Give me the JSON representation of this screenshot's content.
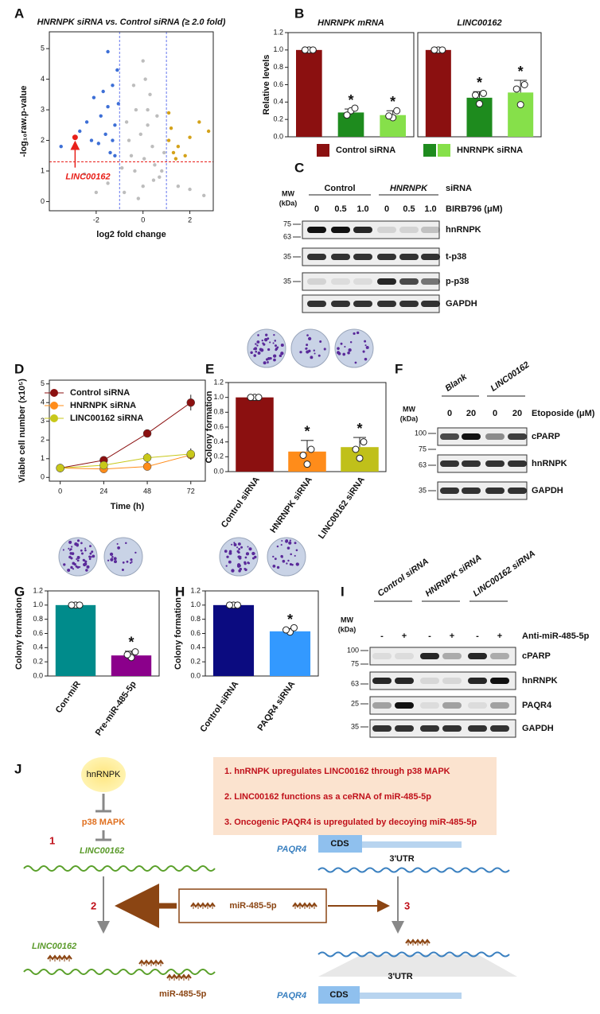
{
  "panel_labels": [
    "A",
    "B",
    "C",
    "D",
    "E",
    "F",
    "G",
    "H",
    "I",
    "J"
  ],
  "chart_data": [
    {
      "type": "scatter",
      "title": "HNRNPK siRNA vs. Control siRNA (≥ 2.0 fold)",
      "xlabel": "log2 fold change",
      "ylabel": "-log₁₀raw.p-value",
      "xlim": [
        -4,
        3
      ],
      "ylim": [
        -0.3,
        5.55
      ],
      "xticks": [
        -2,
        0,
        2
      ],
      "yticks": [
        0,
        1,
        2,
        3,
        4,
        5
      ],
      "vlines": [
        -1,
        1
      ],
      "hline": 1.3,
      "series": [
        {
          "color": "#bdbdbd",
          "x": [
            0,
            -0.5,
            0.5,
            0.2,
            -0.3,
            0.1,
            0.3,
            -0.6,
            0.7,
            -0.8,
            0.4,
            -0.2,
            0.6,
            -0.4,
            0,
            -1.5,
            1.5,
            -2,
            2,
            0.8,
            -0.9,
            -2.5,
            2.6,
            -0.1,
            0.2,
            -0.7,
            0.9,
            -0.35,
            0.45,
            0.05
          ],
          "values": [
            0.5,
            1.5,
            1.2,
            2.5,
            3.0,
            4.0,
            3.5,
            2.0,
            0.8,
            0.3,
            1.8,
            0.1,
            2.8,
            3.8,
            4.6,
            0.6,
            0.5,
            0.3,
            0.4,
            1.0,
            1.1,
            0.9,
            0.2,
            2.2,
            3.0,
            2.6,
            1.6,
            1.0,
            0.7,
            1.4
          ]
        },
        {
          "color": "#3d6fd6",
          "x": [
            -1.2,
            -1.5,
            -1.8,
            -2.1,
            -1.3,
            -1.1,
            -1.6,
            -2.4,
            -1.9,
            -1.4,
            -2.7,
            -1.2,
            -3.5,
            -1.7,
            -1.05,
            -2.2,
            -1.5,
            -1.3
          ],
          "values": [
            2.5,
            3.1,
            2.8,
            3.4,
            3.8,
            4.3,
            2.2,
            2.6,
            1.9,
            1.6,
            2.3,
            1.5,
            1.8,
            3.6,
            3.2,
            2.0,
            4.9,
            2.0
          ]
        },
        {
          "color": "#d4a21a",
          "x": [
            1.1,
            1.3,
            1.5,
            1.2,
            2.4,
            2.8,
            1.8,
            1.1,
            2.0,
            1.4
          ],
          "values": [
            2.0,
            1.6,
            1.8,
            2.4,
            2.6,
            2.3,
            1.5,
            2.9,
            2.1,
            1.4
          ]
        },
        {
          "color": "#e8201a",
          "x": [
            -2.9
          ],
          "values": [
            2.1
          ]
        }
      ],
      "annotation": "LINC00162"
    },
    {
      "type": "bar",
      "title": "HNRNPK mRNA",
      "ylabel": "Relative levels",
      "values": [
        1.0,
        0.28,
        0.25
      ],
      "errors": [
        0,
        0.04,
        0.05
      ],
      "points": [
        [
          1,
          1,
          1
        ],
        [
          0.3,
          0.25,
          0.33
        ],
        [
          0.22,
          0.24,
          0.3
        ]
      ],
      "significance": [
        null,
        "*",
        "*"
      ],
      "colors": [
        "#8b1010",
        "#1e8b1e",
        "#86e04a"
      ],
      "ylim": [
        0,
        1.2
      ],
      "yticks": [
        {
          "value": 0,
          "label": "0.0"
        },
        0.2,
        0.4,
        0.6,
        0.8,
        {
          "value": 1,
          "label": "1.0"
        },
        1.2
      ],
      "legend": [
        {
          "name": "Control siRNA",
          "colors": [
            "#8b1010"
          ]
        },
        {
          "name": "HNRNPK siRNA",
          "colors": [
            "#1e8b1e",
            "#86e04a"
          ]
        }
      ]
    },
    {
      "type": "bar",
      "title": "LINC00162",
      "values": [
        1.0,
        0.45,
        0.51
      ],
      "errors": [
        0,
        0.07,
        0.14
      ],
      "points": [
        [
          1,
          1,
          1
        ],
        [
          0.38,
          0.48,
          0.5
        ],
        [
          0.37,
          0.55,
          0.6
        ]
      ],
      "significance": [
        null,
        "*",
        "*"
      ],
      "colors": [
        "#8b1010",
        "#1e8b1e",
        "#86e04a"
      ],
      "ylim": [
        0,
        1.2
      ]
    },
    {
      "type": "line",
      "xlabel": "Time (h)",
      "ylabel": "Viable cell number (x10⁵)",
      "x": [
        0,
        24,
        48,
        72
      ],
      "xlim": [
        -6,
        80
      ],
      "xticks": [
        0,
        24,
        48,
        72
      ],
      "ylim": [
        -0.2,
        5.2
      ],
      "yticks": [
        0,
        1,
        2,
        3,
        4,
        5
      ],
      "series": [
        {
          "name": "Control siRNA",
          "color": "#8b1010",
          "values": [
            0.5,
            0.92,
            2.35,
            4.0
          ],
          "errors": [
            0.05,
            0.1,
            0.15,
            0.42
          ]
        },
        {
          "name": "HNRNPK siRNA",
          "color": "#ff8c1a",
          "values": [
            0.5,
            0.45,
            0.58,
            1.2
          ],
          "errors": [
            0.05,
            0.1,
            0.2,
            0.25
          ]
        },
        {
          "name": "LINC00162 siRNA",
          "color": "#c8c81a",
          "values": [
            0.5,
            0.65,
            1.05,
            1.25
          ],
          "errors": [
            0.05,
            0.1,
            0.25,
            0.3
          ]
        }
      ]
    },
    {
      "type": "bar",
      "ylabel": "Colony formation",
      "categories": [
        "Control siRNA",
        "HNRNPK siRNA",
        "LINC00162 siRNA"
      ],
      "values": [
        1.0,
        0.27,
        0.33
      ],
      "errors": [
        0,
        0.15,
        0.13
      ],
      "points": [
        [
          1,
          1,
          1
        ],
        [
          0.1,
          0.22,
          0.3
        ],
        [
          0.18,
          0.3,
          0.4
        ]
      ],
      "significance": [
        null,
        "*",
        "*"
      ],
      "colors": [
        "#8b1010",
        "#ff8c1a",
        "#c0c01a"
      ],
      "ylim": [
        0,
        1.2
      ],
      "yticks": [
        {
          "value": 0,
          "label": "0.0"
        },
        0.2,
        0.4,
        0.6,
        0.8,
        {
          "value": 1,
          "label": "1.0"
        },
        1.2
      ]
    },
    {
      "type": "bar",
      "ylabel": "Colony formation",
      "categories": [
        "Con-miR",
        "Pre-miR-485-5p"
      ],
      "values": [
        1.0,
        0.29
      ],
      "errors": [
        0,
        0.06
      ],
      "points": [
        [
          1,
          1,
          1
        ],
        [
          0.26,
          0.3,
          0.34
        ]
      ],
      "significance": [
        null,
        "*"
      ],
      "colors": [
        "#008b8b",
        "#8b008b"
      ],
      "ylim": [
        0,
        1.2
      ],
      "yticks": [
        {
          "value": 0,
          "label": "0.0"
        },
        0.2,
        0.4,
        0.6,
        0.8,
        {
          "value": 1,
          "label": "1.0"
        },
        1.2
      ]
    },
    {
      "type": "bar",
      "ylabel": "Colony formation",
      "categories": [
        "Control siRNA",
        "PAQR4 siRNA"
      ],
      "values": [
        1.0,
        0.63
      ],
      "errors": [
        0,
        0.04
      ],
      "points": [
        [
          1,
          1,
          1
        ],
        [
          0.62,
          0.65,
          0.68
        ]
      ],
      "significance": [
        null,
        "*"
      ],
      "colors": [
        "#0b0b80",
        "#3399ff"
      ],
      "ylim": [
        0,
        1.2
      ],
      "yticks": [
        {
          "value": 0,
          "label": "0.0"
        },
        0.2,
        0.4,
        0.6,
        0.8,
        {
          "value": 1,
          "label": "1.0"
        },
        1.2
      ]
    }
  ],
  "blots": {
    "C": {
      "groups": [
        "Control",
        "HNRNPK"
      ],
      "group_label": "siRNA",
      "mw": [
        "MW",
        "(kDa)"
      ],
      "lanes": [
        "0",
        "0.5",
        "1.0",
        "0",
        "0.5",
        "1.0"
      ],
      "lane_label": "BIRB796 (μM)",
      "markers": [
        "75",
        "63",
        "35",
        "35"
      ],
      "rows": [
        "hnRNPK",
        "t-p38",
        "p-p38",
        "GAPDH"
      ]
    },
    "F": {
      "groups": [
        "Blank",
        "LINC00162"
      ],
      "mw": [
        "MW",
        "(kDa)"
      ],
      "lanes": [
        "0",
        "20",
        "0",
        "20"
      ],
      "lane_label": "Etoposide (μM)",
      "markers": [
        "100",
        "75",
        "63",
        "35"
      ],
      "rows": [
        "cPARP",
        "hnRNPK",
        "GAPDH"
      ]
    },
    "I": {
      "groups": [
        "Control siRNA",
        "HNRNPK siRNA",
        "LINC00162 siRNA"
      ],
      "mw": [
        "MW",
        "(kDa)"
      ],
      "lanes": [
        "-",
        "+",
        "-",
        "+",
        "-",
        "+"
      ],
      "lane_label": "Anti-miR-485-5p",
      "markers": [
        "100",
        "75",
        "63",
        "25",
        "35"
      ],
      "rows": [
        "cPARP",
        "hnRNPK",
        "PAQR4",
        "GAPDH"
      ]
    }
  },
  "diagram": {
    "node": "hnRNPK",
    "pathway": "p38 MAPK",
    "steps": [
      "1",
      "2",
      "3"
    ],
    "lnc": "LINC00162",
    "mirna": "miR-485-5p",
    "target": "PAQR4",
    "cds": "CDS",
    "utr": "3'UTR",
    "summary": [
      "1. hnRNPK upregulates LINC00162 through p38 MAPK",
      "2. LINC00162 functions as a ceRNA of miR-485-5p",
      "3. Oncogenic PAQR4 is upregulated by decoying miR-485-5p"
    ]
  }
}
